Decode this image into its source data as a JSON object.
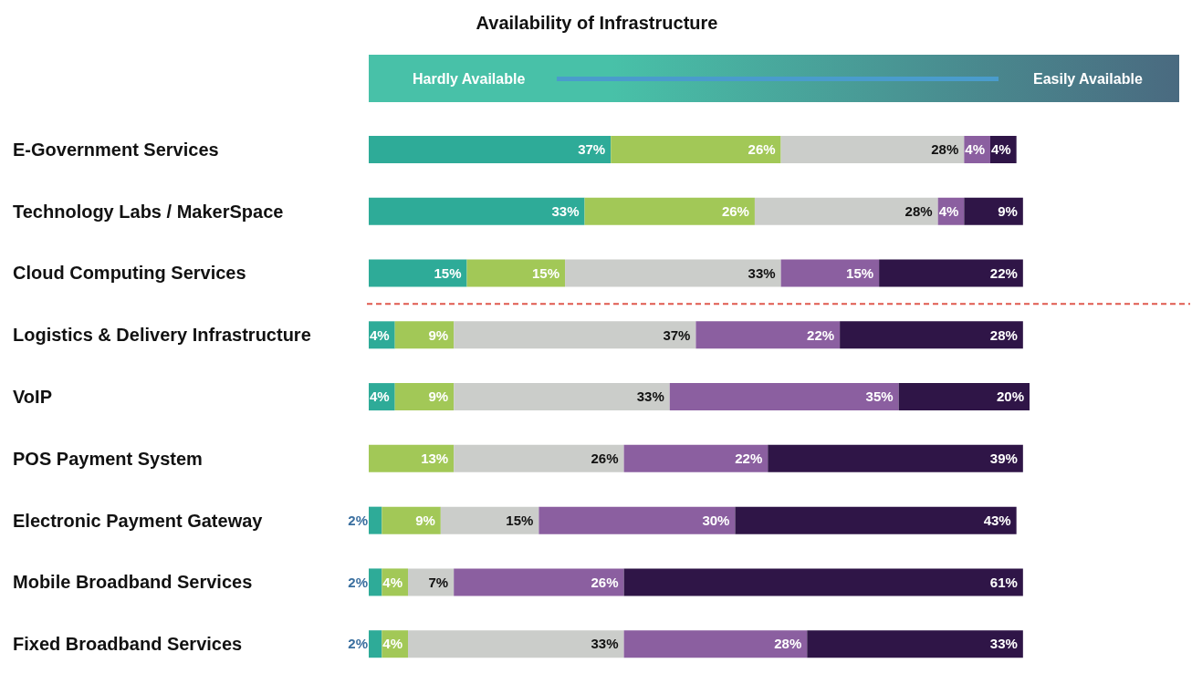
{
  "chart_data": {
    "type": "bar",
    "orientation": "horizontal",
    "stacked": true,
    "title": "Availability of Infrastructure",
    "annotations": [
      "Hardly Available",
      "Easily Available"
    ],
    "categories": [
      "E-Government Services",
      "Technology Labs / MakerSpace",
      "Cloud Computing Services",
      "Logistics & Delivery Infrastructure",
      "VoIP",
      "POS Payment System",
      "Electronic Payment Gateway",
      "Mobile Broadband Services",
      "Fixed Broadband Services"
    ],
    "ref_lines": [
      {
        "axis": "y",
        "value": "Logistics & Delivery Infrastructure",
        "color": "#e05a4f",
        "line_style": "dashed"
      }
    ],
    "series": [
      {
        "color": "#2eab98",
        "values": [
          37,
          33,
          15,
          4,
          4,
          null,
          2,
          2,
          2
        ],
        "value_labels": [
          "37%",
          "33%",
          "15%",
          "4%",
          "4%",
          null,
          "2%",
          "2%",
          "2%"
        ]
      },
      {
        "color": "#a2c857",
        "values": [
          26,
          26,
          15,
          9,
          9,
          13,
          9,
          4,
          4
        ],
        "value_labels": [
          "26%",
          "26%",
          "15%",
          "9%",
          "9%",
          "13%",
          "9%",
          "4%",
          "4%"
        ]
      },
      {
        "color": "#cbcdca",
        "values": [
          28,
          28,
          33,
          37,
          33,
          26,
          15,
          7,
          33
        ],
        "value_labels": [
          "28%",
          "28%",
          "33%",
          "37%",
          "33%",
          "26%",
          "15%",
          "7%",
          "33%"
        ]
      },
      {
        "color": "#8b5fa0",
        "values": [
          4,
          4,
          15,
          22,
          35,
          22,
          30,
          26,
          28
        ],
        "value_labels": [
          "4%",
          "4%",
          "15%",
          "22%",
          "35%",
          "22%",
          "30%",
          "26%",
          "28%"
        ]
      },
      {
        "color": "#2f1547",
        "values": [
          4,
          9,
          22,
          28,
          20,
          39,
          43,
          61,
          33
        ],
        "value_labels": [
          "4%",
          "9%",
          "22%",
          "28%",
          "20%",
          "39%",
          "43%",
          "61%",
          "33%"
        ]
      }
    ]
  }
}
